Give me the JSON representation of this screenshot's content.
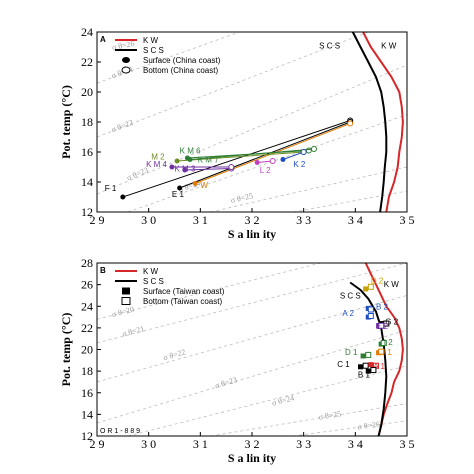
{
  "chart_data": [
    {
      "type": "scatter",
      "panel_label": "A",
      "xlabel": "S a lin ity",
      "ylabel": "Pot. temp (°C)",
      "xlim": [
        29,
        35
      ],
      "ylim": [
        12,
        24
      ],
      "xticks": [
        29,
        30,
        31,
        32,
        33,
        34,
        35
      ],
      "xtick_labels": [
        "2 9",
        "3 0",
        "3 1",
        "3 2",
        "3 3",
        "3 4",
        "3 5"
      ],
      "yticks": [
        12,
        14,
        16,
        18,
        20,
        22,
        24
      ],
      "ytick_labels": [
        "12",
        "14",
        "16",
        "18",
        "20",
        "22",
        "24"
      ],
      "grid": false,
      "legend_placement": "top-left",
      "legend": [
        {
          "label": "K W",
          "kind": "line",
          "color": "#d62728"
        },
        {
          "label": "S C S",
          "kind": "line",
          "color": "#000000"
        },
        {
          "label": "Surface (China coast)",
          "kind": "filled-marker",
          "color": "#000000"
        },
        {
          "label": "Bottom (China coast)",
          "kind": "open-marker",
          "color": "#000000"
        }
      ],
      "curve_labels": [
        {
          "text": "S C S",
          "x": 33.3,
          "y": 22.9
        },
        {
          "text": "K W",
          "x": 34.5,
          "y": 22.9,
          "color": "#d62728"
        }
      ],
      "water_masses": [
        {
          "name": "K W",
          "color": "#d62728",
          "points": [
            [
              34.15,
              24
            ],
            [
              34.3,
              23
            ],
            [
              34.5,
              22
            ],
            [
              34.7,
              21
            ],
            [
              34.85,
              20
            ],
            [
              34.9,
              19
            ],
            [
              34.92,
              18
            ],
            [
              34.9,
              17
            ],
            [
              34.85,
              16
            ],
            [
              34.82,
              15
            ],
            [
              34.75,
              14
            ],
            [
              34.65,
              13
            ],
            [
              34.6,
              12
            ]
          ]
        },
        {
          "name": "S C S",
          "color": "#000000",
          "points": [
            [
              33.95,
              24
            ],
            [
              34.1,
              23
            ],
            [
              34.25,
              22
            ],
            [
              34.4,
              21
            ],
            [
              34.5,
              20
            ],
            [
              34.55,
              19
            ],
            [
              34.58,
              18
            ],
            [
              34.6,
              17
            ],
            [
              34.6,
              16
            ],
            [
              34.57,
              15
            ],
            [
              34.55,
              14
            ],
            [
              34.52,
              13
            ],
            [
              34.48,
              12
            ]
          ]
        }
      ],
      "isopycnals": [
        {
          "label": "σ θ=21",
          "points": [
            [
              29,
              20.6
            ],
            [
              35,
              28.0
            ]
          ],
          "label_at": [
            29.3,
            20.9
          ]
        },
        {
          "label": "σ θ=22",
          "points": [
            [
              29,
              17.0
            ],
            [
              35,
              25.0
            ]
          ],
          "label_at": [
            29.3,
            17.3
          ]
        },
        {
          "label": "σ θ=23",
          "points": [
            [
              29,
              13.2
            ],
            [
              35,
              21.8
            ]
          ],
          "label_at": [
            29.6,
            14.1
          ]
        },
        {
          "label": "σ θ=24",
          "points": [
            [
              29.6,
              12
            ],
            [
              35,
              18.5
            ]
          ],
          "label_at": [
            30.6,
            13.3
          ]
        },
        {
          "label": "σ θ=25",
          "points": [
            [
              31.2,
              12
            ],
            [
              35,
              15.0
            ]
          ],
          "label_at": [
            31.6,
            12.6
          ]
        },
        {
          "label": "σ θ=26",
          "points": [
            [
              32.8,
              12
            ],
            [
              35,
              13.4
            ]
          ],
          "label_at": [
            29.3,
            22.8
          ]
        }
      ],
      "stations": [
        {
          "name": "F 1",
          "color": "#000000",
          "surface": [
            29.5,
            13.0
          ],
          "bottom": [
            33.9,
            18.1
          ],
          "label_at": [
            29.15,
            13.4
          ]
        },
        {
          "name": "E 1",
          "color": "#000000",
          "surface": [
            30.6,
            13.6
          ],
          "bottom": [
            33.9,
            18.0
          ],
          "label_at": [
            30.45,
            13.0
          ]
        },
        {
          "name": "W",
          "color": "#e07b00",
          "surface": [
            30.9,
            13.9
          ],
          "bottom": [
            33.9,
            17.9
          ],
          "label_at": [
            31.0,
            13.6
          ]
        },
        {
          "name": "K M 3",
          "color": "#7030a0",
          "surface": [
            30.7,
            14.8
          ],
          "bottom": [
            31.6,
            14.9
          ],
          "label_at": [
            30.5,
            14.7
          ]
        },
        {
          "name": "K M 4",
          "color": "#7030a0",
          "surface": [
            30.45,
            15.0
          ],
          "bottom": [
            31.6,
            15.0
          ],
          "label_at": [
            29.95,
            15.0
          ]
        },
        {
          "name": "M 2",
          "color": "#6b8e23",
          "surface": [
            30.55,
            15.4
          ],
          "bottom": [
            33.0,
            16.0
          ],
          "label_at": [
            30.05,
            15.5
          ]
        },
        {
          "name": "K M 6",
          "color": "#2e7d32",
          "surface": [
            30.75,
            15.6
          ],
          "bottom": [
            33.1,
            16.1
          ],
          "label_at": [
            30.6,
            15.9
          ]
        },
        {
          "name": "K M 7",
          "color": "#2e7d32",
          "surface": [
            30.8,
            15.5
          ],
          "bottom": [
            33.2,
            16.2
          ],
          "label_at": [
            30.95,
            15.3
          ]
        },
        {
          "name": "L 2",
          "color": "#c040c0",
          "surface": [
            32.1,
            15.3
          ],
          "bottom": [
            32.4,
            15.4
          ],
          "label_at": [
            32.15,
            14.6
          ]
        },
        {
          "name": "K 2",
          "color": "#1f4fbf",
          "surface": [
            32.6,
            15.5
          ],
          "bottom": [
            33.0,
            16.0
          ],
          "label_at": [
            32.8,
            15.0
          ]
        }
      ]
    },
    {
      "type": "scatter",
      "panel_label": "B",
      "xlabel": "S a lin ity",
      "ylabel": "Pot. temp (°C)",
      "xlim": [
        29,
        35
      ],
      "ylim": [
        12,
        28
      ],
      "xticks": [
        29,
        30,
        31,
        32,
        33,
        34,
        35
      ],
      "xtick_labels": [
        "2 9",
        "3 0",
        "3 1",
        "3 2",
        "3 3",
        "3 4",
        "3 5"
      ],
      "yticks": [
        12,
        14,
        16,
        18,
        20,
        22,
        24,
        26,
        28
      ],
      "ytick_labels": [
        "12",
        "14",
        "16",
        "18",
        "20",
        "22",
        "24",
        "26",
        "28"
      ],
      "grid": false,
      "legend_placement": "top-left",
      "legend": [
        {
          "label": "K W",
          "kind": "line",
          "color": "#d62728"
        },
        {
          "label": "S C S",
          "kind": "line",
          "color": "#000000"
        },
        {
          "label": "Surface (Taiwan coast)",
          "kind": "filled-square",
          "color": "#000000"
        },
        {
          "label": "Bottom (Taiwan coast)",
          "kind": "open-square",
          "color": "#000000"
        }
      ],
      "curve_labels": [
        {
          "text": "S C S",
          "x": 33.7,
          "y": 24.7
        },
        {
          "text": "K W",
          "x": 34.55,
          "y": 25.8,
          "color": "#d62728"
        }
      ],
      "note": "O R 1 - 8 8 9",
      "water_masses": [
        {
          "name": "K W",
          "color": "#d62728",
          "points": [
            [
              34.2,
              28
            ],
            [
              34.3,
              27
            ],
            [
              34.4,
              26
            ],
            [
              34.5,
              25
            ],
            [
              34.6,
              24
            ],
            [
              34.75,
              23
            ],
            [
              34.85,
              22
            ],
            [
              34.9,
              21
            ],
            [
              34.92,
              20
            ],
            [
              34.9,
              19
            ],
            [
              34.85,
              18
            ],
            [
              34.75,
              17
            ],
            [
              34.7,
              16
            ],
            [
              34.62,
              15
            ],
            [
              34.55,
              14
            ],
            [
              34.5,
              13
            ],
            [
              34.45,
              12
            ]
          ]
        },
        {
          "name": "S C S",
          "color": "#000000",
          "points": [
            [
              33.9,
              26.2
            ],
            [
              34.1,
              25.5
            ],
            [
              34.25,
              24.7
            ],
            [
              34.4,
              23.5
            ],
            [
              34.5,
              22.0
            ],
            [
              34.55,
              20.5
            ],
            [
              34.58,
              19
            ],
            [
              34.6,
              17.5
            ],
            [
              34.58,
              16
            ],
            [
              34.55,
              14.5
            ],
            [
              34.5,
              13
            ],
            [
              34.45,
              12
            ]
          ]
        }
      ],
      "isopycnals": [
        {
          "label": "σ θ=20",
          "points": [
            [
              29,
              22.8
            ],
            [
              35,
              30.0
            ]
          ],
          "label_at": [
            29.3,
            23.0
          ]
        },
        {
          "label": "σ θ=21",
          "points": [
            [
              29,
              20.6
            ],
            [
              35,
              28.0
            ]
          ],
          "label_at": [
            29.5,
            21.2
          ]
        },
        {
          "label": "σ θ=22",
          "points": [
            [
              29,
              17.0
            ],
            [
              35,
              25.0
            ]
          ],
          "label_at": [
            30.3,
            19.0
          ]
        },
        {
          "label": "σ θ=23",
          "points": [
            [
              29,
              13.2
            ],
            [
              35,
              21.8
            ]
          ],
          "label_at": [
            31.3,
            16.4
          ]
        },
        {
          "label": "σ θ=24",
          "points": [
            [
              29.6,
              12
            ],
            [
              35,
              18.5
            ]
          ],
          "label_at": [
            32.4,
            14.8
          ]
        },
        {
          "label": "σ θ=25",
          "points": [
            [
              31.2,
              12
            ],
            [
              35,
              15.0
            ]
          ],
          "label_at": [
            33.3,
            13.5
          ]
        },
        {
          "label": "σ θ=26",
          "points": [
            [
              32.8,
              12
            ],
            [
              35,
              13.4
            ]
          ],
          "label_at": [
            34.05,
            12.6
          ]
        }
      ],
      "stations": [
        {
          "name": "D 2",
          "color": "#c8a000",
          "surface": [
            34.2,
            25.6
          ],
          "bottom": [
            34.3,
            25.8
          ],
          "label_at": [
            34.3,
            26.1
          ]
        },
        {
          "name": "B 2",
          "color": "#1f4fbf",
          "surface": [
            34.25,
            23.8
          ],
          "bottom": [
            34.3,
            23.7
          ],
          "label_at": [
            34.4,
            23.7
          ]
        },
        {
          "name": "A 2",
          "color": "#1f4fbf",
          "surface": [
            34.25,
            23.0
          ],
          "bottom": [
            34.3,
            23.1
          ],
          "label_at": [
            33.75,
            23.1
          ]
        },
        {
          "name": "G 2",
          "color": "#000000",
          "surface": [
            34.5,
            22.4
          ],
          "bottom": [
            34.6,
            22.4
          ],
          "label_at": [
            34.58,
            22.3
          ]
        },
        {
          "name": "E 2",
          "color": "#7030a0",
          "surface": [
            34.45,
            22.2
          ],
          "bottom": [
            34.5,
            22.2
          ],
          "label_at": [
            34.4,
            21.9
          ]
        },
        {
          "name": "I 2",
          "color": "#2e7d32",
          "surface": [
            34.5,
            20.5
          ],
          "bottom": [
            34.55,
            20.6
          ],
          "label_at": [
            34.55,
            20.4
          ]
        },
        {
          "name": "J 1",
          "color": "#e07b00",
          "surface": [
            34.45,
            19.7
          ],
          "bottom": [
            34.5,
            19.8
          ],
          "label_at": [
            34.5,
            19.5
          ]
        },
        {
          "name": "D 1",
          "color": "#2e7d32",
          "surface": [
            34.15,
            19.4
          ],
          "bottom": [
            34.25,
            19.5
          ],
          "label_at": [
            33.8,
            19.5
          ]
        },
        {
          "name": "C 1",
          "color": "#000000",
          "surface": [
            34.1,
            18.4
          ],
          "bottom": [
            34.2,
            18.5
          ],
          "label_at": [
            33.65,
            18.4
          ]
        },
        {
          "name": "A 1",
          "color": "#d62728",
          "surface": [
            34.3,
            18.6
          ],
          "bottom": [
            34.4,
            18.5
          ],
          "label_at": [
            34.35,
            18.2
          ]
        },
        {
          "name": "B 1",
          "color": "#000000",
          "surface": [
            34.25,
            18.0
          ],
          "bottom": [
            34.35,
            18.1
          ],
          "label_at": [
            34.05,
            17.4
          ]
        }
      ]
    }
  ]
}
